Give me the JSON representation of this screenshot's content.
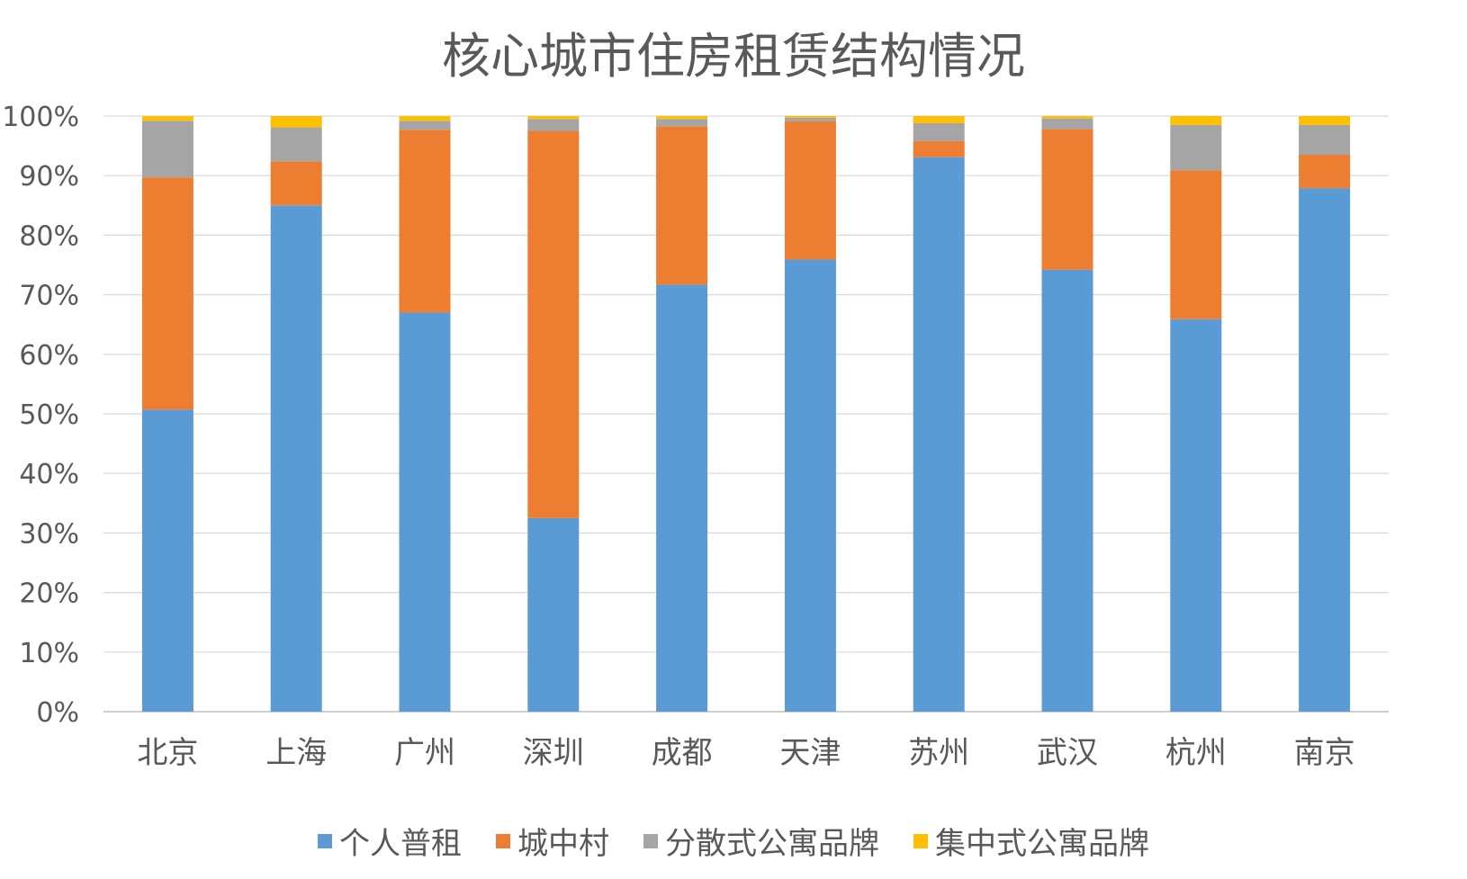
{
  "chart_data": {
    "type": "bar",
    "stacked": true,
    "title": "核心城市住房租赁结构情况",
    "categories": [
      "北京",
      "上海",
      "广州",
      "深圳",
      "成都",
      "天津",
      "苏州",
      "武汉",
      "杭州",
      "南京"
    ],
    "series": [
      {
        "name": "个人普租",
        "color": "#5B9BD5",
        "values": [
          50.7,
          85.0,
          67.0,
          32.5,
          71.7,
          75.9,
          93.1,
          74.2,
          65.9,
          87.9
        ]
      },
      {
        "name": "城中村",
        "color": "#ED7D31",
        "values": [
          39.0,
          7.4,
          30.7,
          65.0,
          26.6,
          23.2,
          2.7,
          23.6,
          25.0,
          5.6
        ]
      },
      {
        "name": "分散式公寓品牌",
        "color": "#A5A5A5",
        "values": [
          9.5,
          5.7,
          1.5,
          2.0,
          1.2,
          0.6,
          3.0,
          1.8,
          7.6,
          5.0
        ]
      },
      {
        "name": "集中式公寓品牌",
        "color": "#FFC000",
        "values": [
          0.8,
          1.9,
          0.8,
          0.5,
          0.5,
          0.3,
          1.2,
          0.4,
          1.5,
          1.5
        ]
      }
    ],
    "y_ticks": [
      "0%",
      "10%",
      "20%",
      "30%",
      "40%",
      "50%",
      "60%",
      "70%",
      "80%",
      "90%",
      "100%"
    ],
    "ylim": [
      0,
      100
    ],
    "grid": true,
    "legend_position": "bottom"
  }
}
